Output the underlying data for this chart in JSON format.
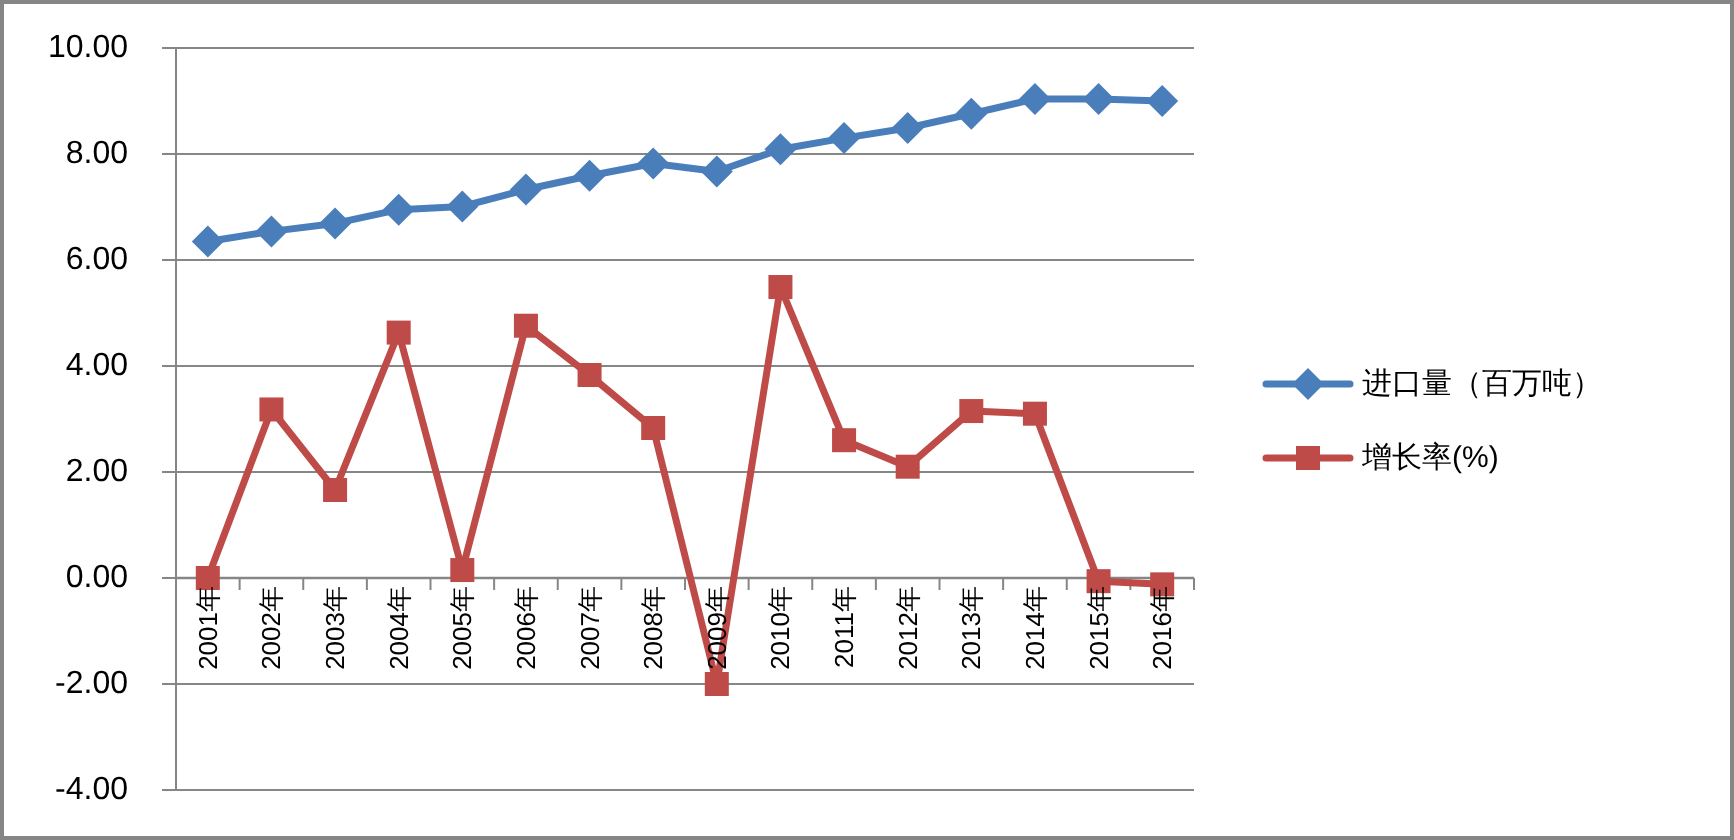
{
  "chart_data": {
    "type": "line",
    "categories": [
      "2001年",
      "2002年",
      "2003年",
      "2004年",
      "2005年",
      "2006年",
      "2007年",
      "2008年",
      "2009年",
      "2010年",
      "2011年",
      "2012年",
      "2013年",
      "2014年",
      "2015年",
      "2016年"
    ],
    "series": [
      {
        "name": "进口量（百万吨）",
        "color": "#4a7ebb",
        "marker": "diamond",
        "values": [
          6.35,
          6.54,
          6.69,
          6.95,
          7.01,
          7.33,
          7.59,
          7.82,
          7.67,
          8.09,
          8.3,
          8.49,
          8.76,
          9.04,
          9.04,
          9.0
        ]
      },
      {
        "name": "增长率(%)",
        "color": "#be4b48",
        "marker": "square",
        "values": [
          0.0,
          3.18,
          1.66,
          4.63,
          0.15,
          4.76,
          3.83,
          2.83,
          -2.0,
          5.49,
          2.6,
          2.1,
          3.15,
          3.1,
          -0.06,
          -0.12
        ]
      }
    ],
    "ylim": [
      -4,
      10
    ],
    "yticks": [
      {
        "value": -4,
        "label": "-4.00"
      },
      {
        "value": -2,
        "label": "-2.00"
      },
      {
        "value": 0,
        "label": "0.00"
      },
      {
        "value": 2,
        "label": "2.00"
      },
      {
        "value": 4,
        "label": "4.00"
      },
      {
        "value": 6,
        "label": "6.00"
      },
      {
        "value": 8,
        "label": "8.00"
      },
      {
        "value": 10,
        "label": "10.00"
      }
    ],
    "grid": "y",
    "legend": "right",
    "line_style": "solid"
  }
}
